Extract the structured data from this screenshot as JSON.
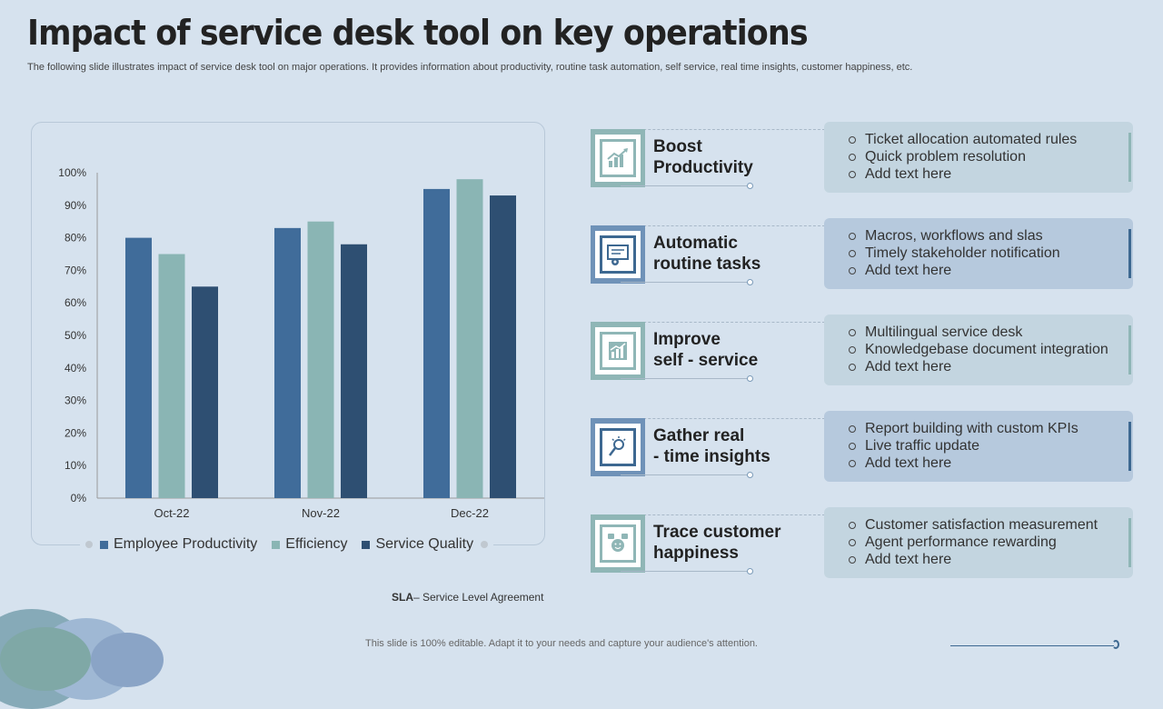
{
  "header": {
    "title": "Impact of service desk tool on key operations",
    "subtitle": "The following slide illustrates impact of service desk tool on major operations. It provides information about productivity, routine task automation, self service, real time insights, customer happiness, etc."
  },
  "chart_data": {
    "type": "bar",
    "categories": [
      "Oct-22",
      "Nov-22",
      "Dec-22"
    ],
    "series": [
      {
        "name": "Employee Productivity",
        "color": "#406c9a",
        "values": [
          80,
          83,
          95
        ]
      },
      {
        "name": "Efficiency",
        "color": "#8ab5b4",
        "values": [
          75,
          85,
          98
        ]
      },
      {
        "name": "Service Quality",
        "color": "#2e4f72",
        "values": [
          65,
          78,
          93
        ]
      }
    ],
    "yticks": [
      "0%",
      "10%",
      "20%",
      "30%",
      "40%",
      "50%",
      "60%",
      "70%",
      "80%",
      "90%",
      "100%"
    ],
    "ylim": [
      0,
      100
    ],
    "title": "",
    "xlabel": "",
    "ylabel": ""
  },
  "footnote": {
    "bold": "SLA",
    "text": "– Service Level Agreement"
  },
  "operations": [
    {
      "label": "Boost\nProductivity",
      "icon": "growth-chart-icon",
      "bullets": [
        "Ticket allocation automated rules",
        "Quick problem resolution",
        "Add text here"
      ]
    },
    {
      "label": "Automatic\nroutine tasks",
      "icon": "automation-gear-icon",
      "bullets": [
        "Macros, workflows and slas",
        "Timely stakeholder notification",
        "Add text here"
      ]
    },
    {
      "label": "Improve\nself - service",
      "icon": "bar-chart-icon",
      "bullets": [
        "Multilingual  service desk",
        "Knowledgebase document integration",
        "Add text here"
      ]
    },
    {
      "label": "Gather real\n - time insights",
      "icon": "insight-bulb-icon",
      "bullets": [
        "Report building with custom KPIs",
        "Live traffic update",
        "Add text here"
      ]
    },
    {
      "label": "Trace customer\nhappiness",
      "icon": "happy-customer-icon",
      "bullets": [
        "Customer satisfaction measurement",
        "Agent performance rewarding",
        "Add text here"
      ]
    }
  ],
  "footer": {
    "text": "This slide is 100% editable. Adapt it to your needs and capture your audience's attention."
  }
}
